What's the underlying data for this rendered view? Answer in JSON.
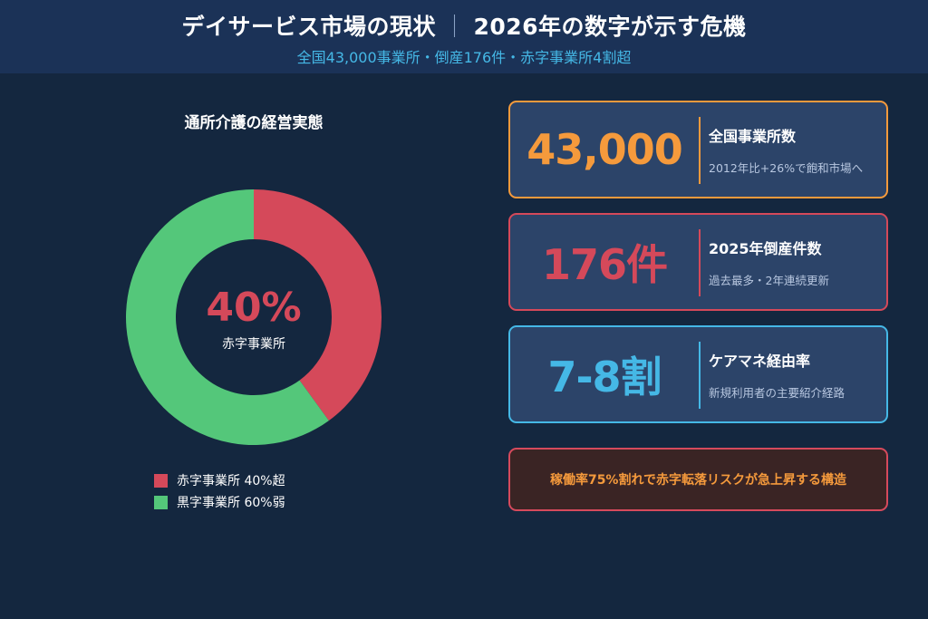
{
  "header": {
    "title_main": "デイサービス市場の現状",
    "title_separator": "｜",
    "title_sub": "2026年の数字が示す危機",
    "subtitle": "全国43,000事業所・倒産176件・赤字事業所4割超"
  },
  "chart_data": {
    "type": "pie",
    "title": "通所介護の経営実態",
    "categories": [
      "赤字事業所",
      "黒字事業所"
    ],
    "values": [
      40,
      60
    ],
    "colors": [
      "#d5495a",
      "#54c77a"
    ],
    "center_value": "40%",
    "center_label": "赤字事業所",
    "legend": [
      "赤字事業所 40%超",
      "黒字事業所 60%弱"
    ],
    "legend_placement": "bottom-left"
  },
  "cards": [
    {
      "value": "43,000",
      "label": "全国事業所数",
      "desc": "2012年比+26%で飽和市場へ",
      "color": "#f59a3c"
    },
    {
      "value": "176件",
      "label": "2025年倒産件数",
      "desc": "過去最多・2年連続更新",
      "color": "#d5495a"
    },
    {
      "value": "7-8割",
      "label": "ケアマネ経由率",
      "desc": "新規利用者の主要紹介経路",
      "color": "#45b8e6"
    }
  ],
  "note": {
    "text": "稼働率75%割れで赤字転落リスクが急上昇する構造",
    "color": "#f59a3c",
    "border_color": "#d64a5c"
  }
}
